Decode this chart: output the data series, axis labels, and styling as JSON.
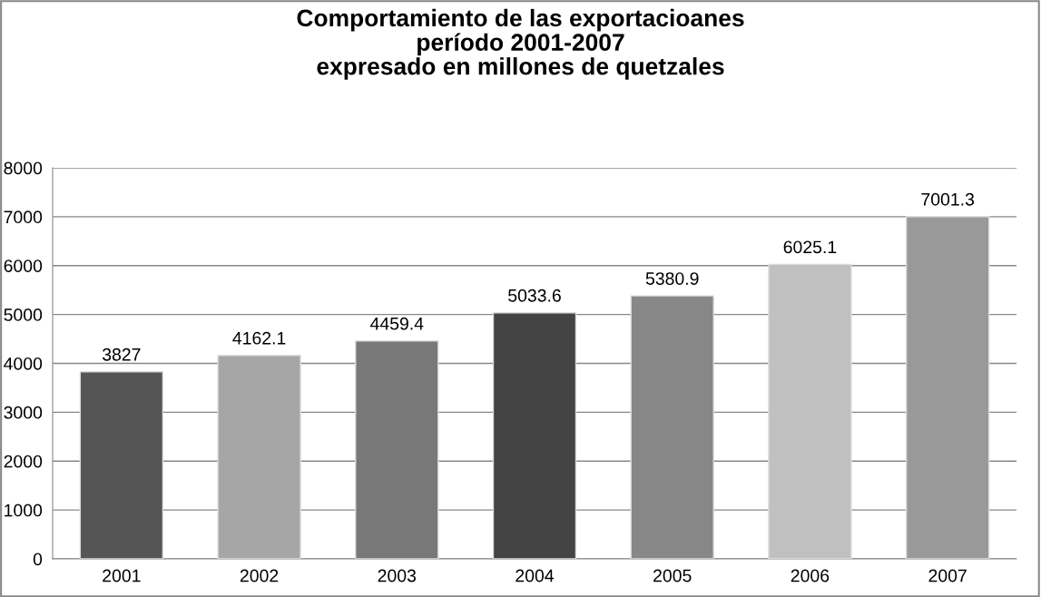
{
  "chart_data": {
    "type": "bar",
    "title": "Comportamiento de las exportacioanes\nperíodo 2001-2007\nexpresado en millones de quetzales",
    "categories": [
      "2001",
      "2002",
      "2003",
      "2004",
      "2005",
      "2006",
      "2007"
    ],
    "values": [
      3827,
      4162.1,
      4459.4,
      5033.6,
      5380.9,
      6025.1,
      7001.3
    ],
    "colors": [
      "#555555",
      "#a6a6a6",
      "#787878",
      "#444444",
      "#878787",
      "#c0c0c0",
      "#999999"
    ],
    "ylim": [
      0,
      8000
    ],
    "yticks": [
      0,
      1000,
      2000,
      3000,
      4000,
      5000,
      6000,
      7000,
      8000
    ],
    "grid": "y",
    "data_labels": true
  }
}
